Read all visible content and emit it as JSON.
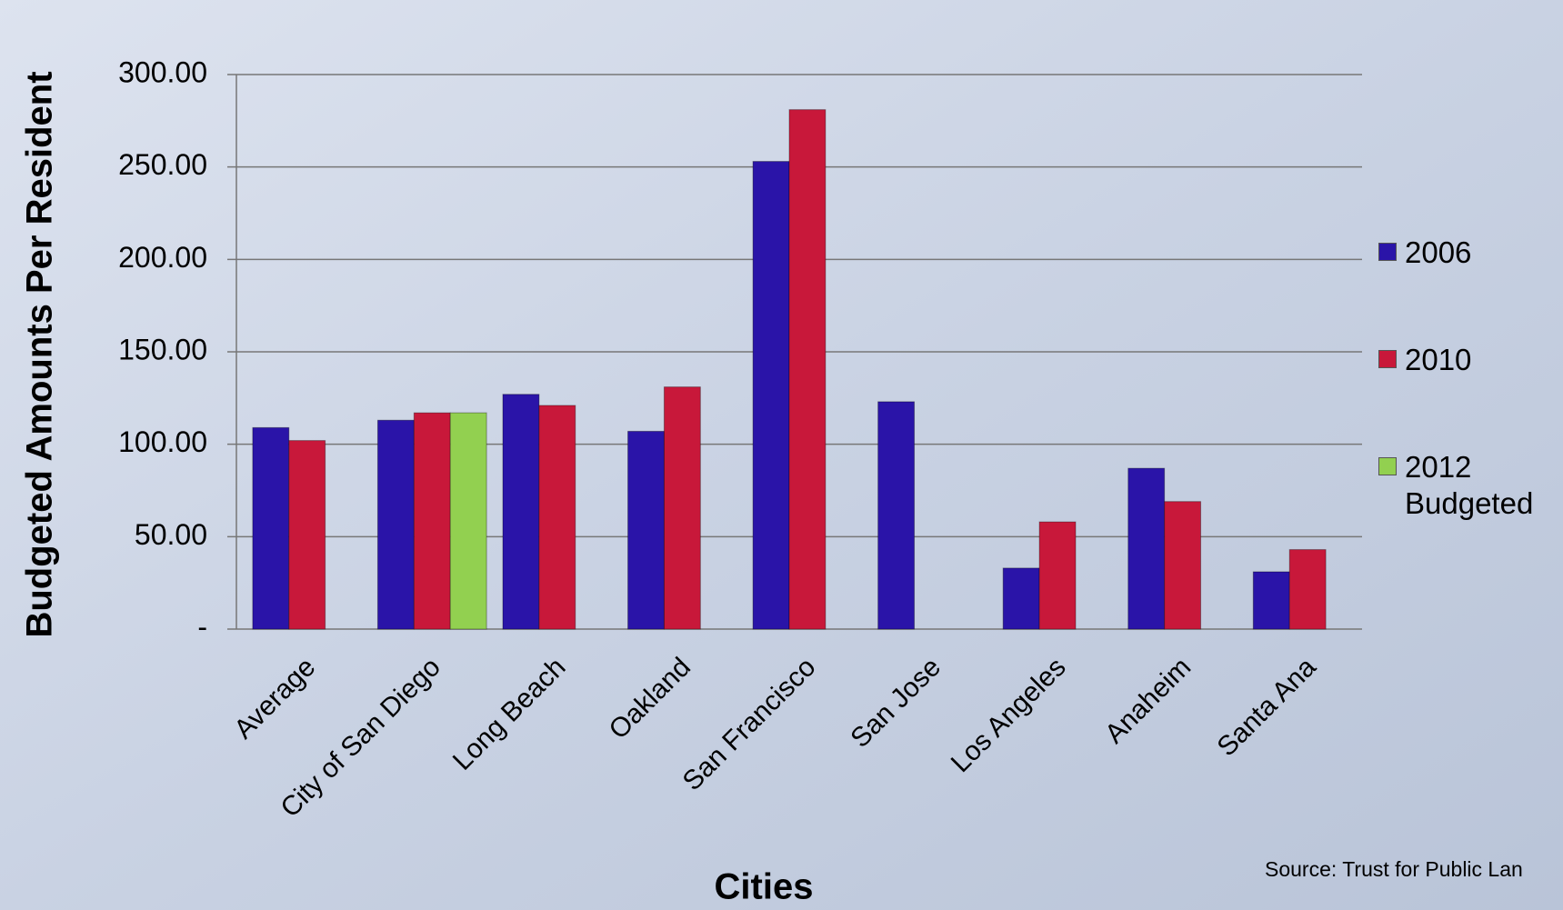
{
  "chart_data": {
    "type": "bar",
    "x_label": "Cities",
    "y_label": "Budgeted Amounts  Per Resident",
    "source": "Source: Trust for Public Lan",
    "categories": [
      "Average",
      "City of San Diego",
      "Long Beach",
      "Oakland",
      "San Francisco",
      "San Jose",
      "Los Angeles",
      "Anaheim",
      "Santa Ana"
    ],
    "series": [
      {
        "name": "2006",
        "color": "#2a14a8",
        "values": [
          109,
          113,
          127,
          107,
          253,
          123,
          33,
          87,
          31
        ]
      },
      {
        "name": "2010",
        "color": "#c8183a",
        "values": [
          102,
          117,
          121,
          131,
          281,
          null,
          58,
          69,
          43
        ]
      },
      {
        "name": "2012 Budgeted",
        "color": "#92d050",
        "values": [
          null,
          117,
          null,
          null,
          null,
          null,
          null,
          null,
          null
        ]
      }
    ],
    "ylim": [
      0,
      300
    ],
    "yticks": [
      {
        "value": 0,
        "label": "-"
      },
      {
        "value": 50,
        "label": "50.00"
      },
      {
        "value": 100,
        "label": "100.00"
      },
      {
        "value": 150,
        "label": "150.00"
      },
      {
        "value": 200,
        "label": "200.00"
      },
      {
        "value": 250,
        "label": "250.00"
      },
      {
        "value": 300,
        "label": "300.00"
      }
    ],
    "grid": true,
    "legend": "right"
  }
}
